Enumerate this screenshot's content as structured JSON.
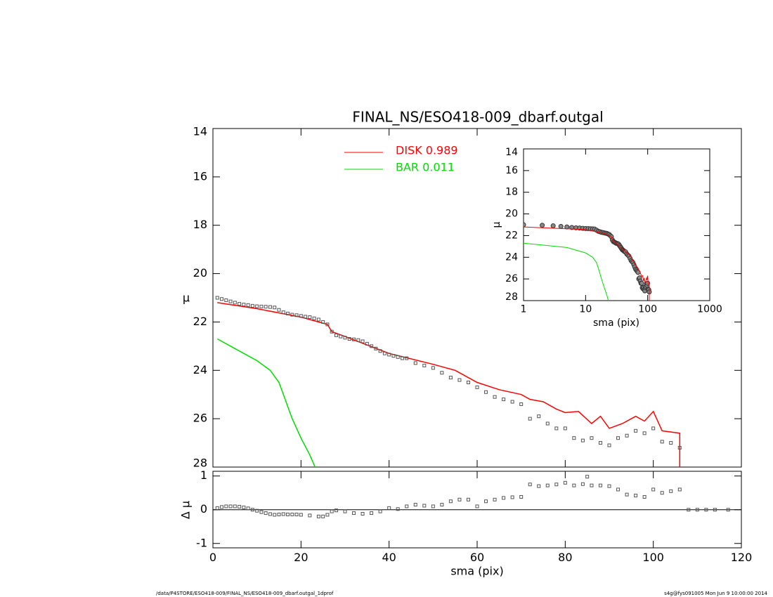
{
  "chart_data": [
    {
      "type": "line",
      "title": "FINAL_NS/ESO418-009_dbarf.outgal",
      "ylabel": "μ",
      "xlim": [
        0,
        120
      ],
      "xticks": [
        0,
        20,
        40,
        60,
        80,
        100,
        120
      ],
      "ylim": [
        28,
        14
      ],
      "yticks": [
        14,
        16,
        18,
        20,
        22,
        24,
        26,
        28
      ],
      "series": [
        {
          "name": "DISK  0.989",
          "color": "#ff0000",
          "style": "line",
          "x": [
            1,
            10,
            20,
            26,
            27,
            30,
            40,
            50,
            55,
            60,
            65,
            70,
            72,
            75,
            78,
            80,
            83,
            86,
            88,
            90,
            93,
            96,
            98,
            100,
            102,
            106,
            106
          ],
          "values": [
            21.2,
            21.45,
            21.8,
            22.1,
            22.4,
            22.6,
            23.3,
            23.75,
            24.0,
            24.5,
            24.8,
            25.0,
            25.2,
            25.3,
            25.6,
            25.75,
            25.7,
            26.2,
            25.9,
            26.4,
            26.2,
            25.9,
            26.1,
            25.7,
            26.5,
            26.6,
            28
          ]
        },
        {
          "name": "BAR  0.011",
          "color": "#00dd00",
          "style": "line",
          "x": [
            1,
            5,
            10,
            13,
            15,
            16,
            17,
            18,
            20,
            22,
            23.2
          ],
          "values": [
            22.7,
            23.1,
            23.6,
            24.0,
            24.5,
            25.0,
            25.5,
            26.0,
            26.8,
            27.5,
            28
          ]
        },
        {
          "color": "#555555",
          "style": "points",
          "x": [
            1,
            2,
            3,
            4,
            5,
            6,
            7,
            8,
            9,
            10,
            11,
            12,
            13,
            14,
            15,
            16,
            17,
            18,
            19,
            20,
            21,
            22,
            23,
            24,
            25,
            26,
            27,
            28,
            29,
            30,
            31,
            32,
            33,
            34,
            35,
            36,
            37,
            38,
            39,
            40,
            41,
            42,
            43,
            44,
            46,
            48,
            50,
            52,
            54,
            56,
            58,
            60,
            62,
            64,
            66,
            68,
            70,
            72,
            74,
            76,
            78,
            80,
            82,
            84,
            86,
            88,
            90,
            92,
            94,
            96,
            98,
            100,
            102,
            104,
            106
          ],
          "values": [
            21.0,
            21.05,
            21.1,
            21.15,
            21.2,
            21.25,
            21.28,
            21.3,
            21.33,
            21.35,
            21.36,
            21.37,
            21.38,
            21.4,
            21.5,
            21.6,
            21.65,
            21.7,
            21.72,
            21.75,
            21.78,
            21.8,
            21.85,
            21.9,
            22.0,
            22.1,
            22.4,
            22.55,
            22.6,
            22.65,
            22.7,
            22.72,
            22.75,
            22.8,
            22.9,
            23.0,
            23.1,
            23.2,
            23.3,
            23.35,
            23.4,
            23.45,
            23.5,
            23.5,
            23.7,
            23.8,
            23.9,
            24.1,
            24.3,
            24.4,
            24.5,
            24.7,
            24.9,
            25.1,
            25.2,
            25.3,
            25.4,
            26.0,
            25.9,
            26.2,
            26.4,
            26.4,
            26.8,
            26.9,
            26.8,
            27.0,
            27.1,
            26.8,
            26.7,
            26.5,
            26.6,
            26.4,
            26.95,
            27.0,
            27.2
          ]
        }
      ]
    },
    {
      "type": "scatter",
      "ylabel": "Δ μ",
      "xlabel": "sma (pix)",
      "xlim": [
        0,
        120
      ],
      "xticks": [
        0,
        20,
        40,
        60,
        80,
        100,
        120
      ],
      "ylim": [
        -1.13,
        1.14
      ],
      "yticks": [
        -1,
        0,
        1
      ],
      "series": [
        {
          "color": "#555555",
          "x": [
            1,
            2,
            3,
            4,
            5,
            6,
            7,
            8,
            9,
            10,
            11,
            12,
            13,
            14,
            15,
            16,
            17,
            18,
            19,
            20,
            22,
            24,
            25,
            26,
            27,
            28,
            30,
            32,
            34,
            36,
            38,
            40,
            42,
            44,
            46,
            48,
            50,
            52,
            54,
            56,
            58,
            60,
            62,
            64,
            66,
            68,
            70,
            72,
            74,
            76,
            78,
            80,
            82,
            84,
            85,
            86,
            88,
            90,
            92,
            94,
            96,
            98,
            100,
            102,
            104,
            106,
            108,
            110,
            112,
            114,
            117
          ],
          "values": [
            0.05,
            0.08,
            0.1,
            0.1,
            0.1,
            0.09,
            0.07,
            0.04,
            0.0,
            -0.03,
            -0.07,
            -0.1,
            -0.13,
            -0.15,
            -0.14,
            -0.13,
            -0.14,
            -0.14,
            -0.14,
            -0.15,
            -0.17,
            -0.2,
            -0.2,
            -0.15,
            -0.05,
            -0.02,
            -0.05,
            -0.1,
            -0.12,
            -0.1,
            -0.05,
            0.05,
            0.02,
            0.1,
            0.15,
            0.12,
            0.1,
            0.15,
            0.25,
            0.3,
            0.3,
            0.1,
            0.25,
            0.3,
            0.35,
            0.37,
            0.38,
            0.75,
            0.7,
            0.72,
            0.75,
            0.8,
            0.72,
            0.76,
            0.98,
            0.72,
            0.72,
            0.7,
            0.6,
            0.45,
            0.42,
            0.38,
            0.6,
            0.5,
            0.55,
            0.6,
            0,
            0,
            0,
            0,
            0
          ]
        }
      ]
    },
    {
      "type": "line",
      "log_x": true,
      "ylabel": "μ",
      "xlabel": "sma (pix)",
      "xlim": [
        1,
        1000
      ],
      "xticks": [
        1,
        10,
        100,
        1000
      ],
      "ylim": [
        28,
        14
      ],
      "yticks": [
        14,
        16,
        18,
        20,
        22,
        24,
        26,
        28
      ]
    }
  ],
  "footer": {
    "left": "/data/P4STORE/ESO418-009/FINAL_NS/ESO418-009_dbarf.outgal_1dprof",
    "right": "s4g@fys091005  Mon Jun  9 10:00:00 2014"
  }
}
